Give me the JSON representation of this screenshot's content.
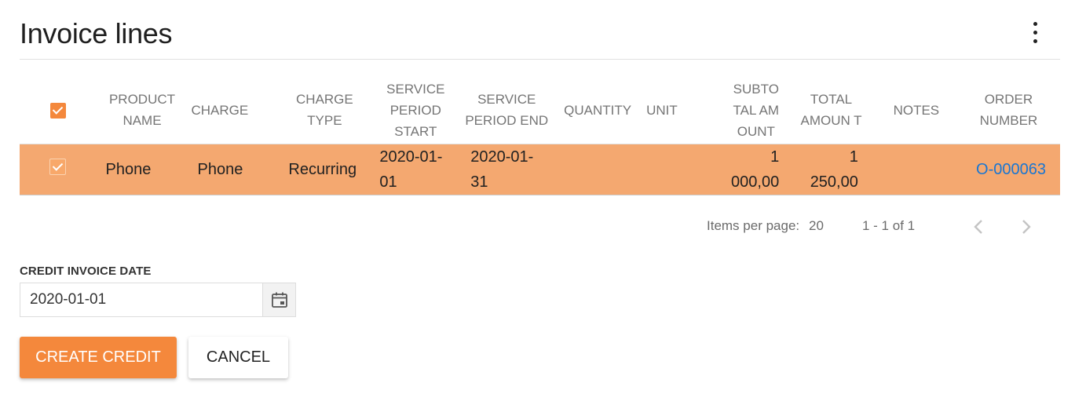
{
  "header": {
    "title": "Invoice lines",
    "menu_icon": "more-vert-icon"
  },
  "table": {
    "columns": [
      {
        "key": "product_name",
        "label": "PRODUCT NAME"
      },
      {
        "key": "charge",
        "label": "CHARGE"
      },
      {
        "key": "charge_type",
        "label": "CHARGE TYPE"
      },
      {
        "key": "service_period_start",
        "label": "SERVICE PERIOD START"
      },
      {
        "key": "service_period_end",
        "label": "SERVICE PERIOD END"
      },
      {
        "key": "quantity",
        "label": "QUANTITY"
      },
      {
        "key": "unit",
        "label": "UNIT"
      },
      {
        "key": "subtotal_amount",
        "label": "SUBTO TAL AM OUNT"
      },
      {
        "key": "total_amount",
        "label": "TOTAL AMOUN T"
      },
      {
        "key": "notes",
        "label": "NOTES"
      },
      {
        "key": "order_number",
        "label": "ORDER NUMBER"
      }
    ],
    "header_checked": true,
    "rows": [
      {
        "selected": true,
        "product_name": "Phone",
        "charge": "Phone",
        "charge_type": "Recurring",
        "service_period_start": "2020-01-01",
        "service_period_end": "2020-01-31",
        "quantity": "",
        "unit": "",
        "subtotal_amount": "1 000,00",
        "total_amount": "1 250,00",
        "notes": "",
        "order_number": "O-000063"
      }
    ]
  },
  "paginator": {
    "items_per_page_label": "Items per page:",
    "items_per_page": "20",
    "range": "1 - 1 of 1",
    "prev_icon": "chevron-left-icon",
    "next_icon": "chevron-right-icon"
  },
  "credit": {
    "date_label": "CREDIT INVOICE DATE",
    "date_value": "2020-01-01",
    "calendar_icon": "calendar-icon"
  },
  "actions": {
    "create_credit": "CREATE CREDIT",
    "cancel": "CANCEL"
  },
  "colors": {
    "accent": "#f4883c",
    "selected_row": "#f4a870",
    "link": "#1976d2"
  }
}
